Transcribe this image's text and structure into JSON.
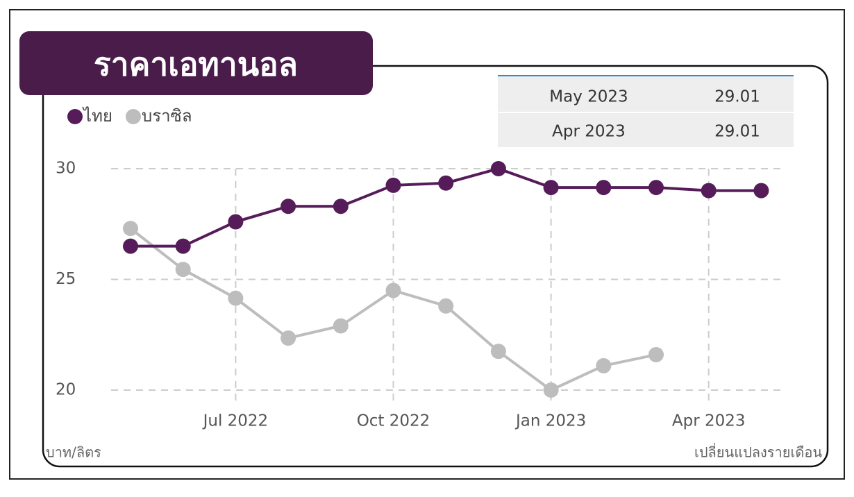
{
  "chart_data": {
    "type": "line",
    "title": "ราคาเอทานอล",
    "y_unit_label": "บาท/ลิตร",
    "x_note": "เปลี่ยนแปลงรายเดือน",
    "categories": [
      null,
      null,
      "Jul 2022",
      null,
      null,
      "Oct 2022",
      null,
      null,
      "Jan 2023",
      null,
      null,
      "Apr 2023",
      null
    ],
    "series": [
      {
        "name": "ไทย",
        "color": "#561c5a",
        "values": [
          26.5,
          26.5,
          27.6,
          28.3,
          28.3,
          29.25,
          29.35,
          30.0,
          29.15,
          29.15,
          29.15,
          29.01,
          29.01
        ]
      },
      {
        "name": "บราซิล",
        "color": "#bdbdbd",
        "values": [
          27.3,
          25.45,
          24.15,
          22.35,
          22.9,
          24.5,
          23.8,
          21.75,
          20.0,
          21.1,
          21.6,
          null,
          null
        ]
      }
    ],
    "ylim": [
      20,
      30
    ],
    "yticks": [
      20,
      25,
      30
    ],
    "grid": true
  },
  "table": {
    "rows": [
      [
        "May 2023",
        29.01
      ],
      [
        "Apr 2023",
        29.01
      ]
    ]
  }
}
